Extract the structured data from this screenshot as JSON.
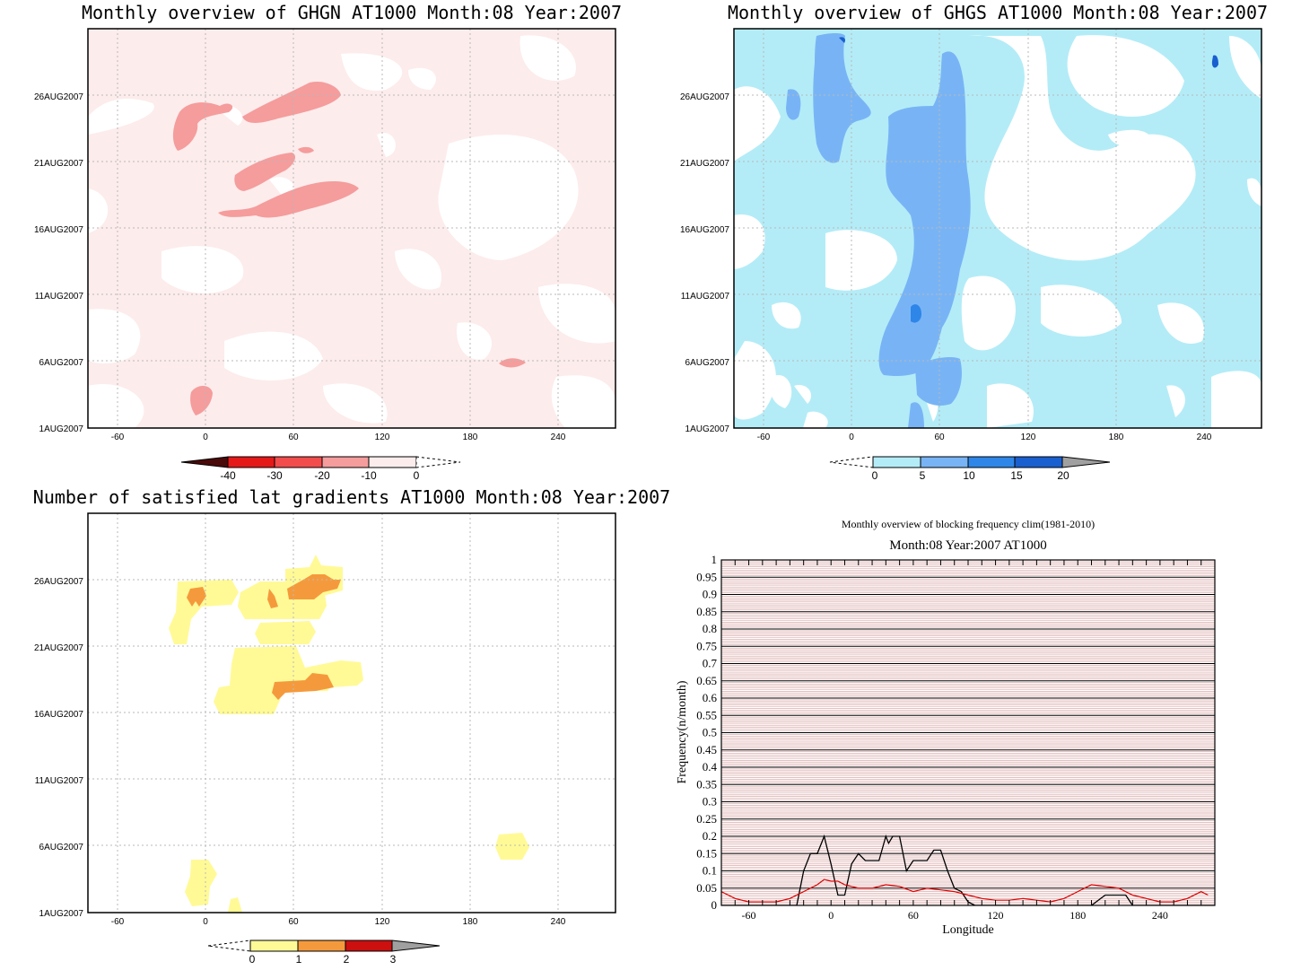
{
  "chart_data": [
    {
      "type": "heatmap",
      "title": "Monthly overview of GHGN AT1000 Month:08 Year:2007",
      "x_ticks": [
        "-60",
        "0",
        "60",
        "120",
        "180",
        "240"
      ],
      "y_ticks": [
        "1AUG2007",
        "6AUG2007",
        "11AUG2007",
        "16AUG2007",
        "21AUG2007",
        "26AUG2007"
      ],
      "xlim": [
        -80,
        280
      ],
      "colorbar": {
        "labels": [
          "-40",
          "-30",
          "-20",
          "-10",
          "0"
        ],
        "colors": [
          "#6b0d0d",
          "#e61919",
          "#f24c4c",
          "#f59c9c",
          "#fdecec"
        ]
      },
      "background_color": "#fdecec",
      "patch_colors": {
        "zero": "#ffffff",
        "level": "#f59c9c"
      }
    },
    {
      "type": "heatmap",
      "title": "Monthly overview of GHGS AT1000 Month:08 Year:2007",
      "x_ticks": [
        "-60",
        "0",
        "60",
        "120",
        "180",
        "240"
      ],
      "y_ticks": [
        "1AUG2007",
        "6AUG2007",
        "11AUG2007",
        "16AUG2007",
        "21AUG2007",
        "26AUG2007"
      ],
      "xlim": [
        -80,
        280
      ],
      "colorbar": {
        "labels": [
          "0",
          "5",
          "10",
          "15",
          "20"
        ],
        "colors": [
          "#b3ecf7",
          "#78b4f5",
          "#2e86e8",
          "#1a5fcf",
          "#a0a0a0"
        ]
      },
      "background_color": "#b3ecf7"
    },
    {
      "type": "heatmap",
      "title": "Number of satisfied lat gradients AT1000 Month:08 Year:2007",
      "x_ticks": [
        "-60",
        "0",
        "60",
        "120",
        "180",
        "240"
      ],
      "y_ticks": [
        "1AUG2007",
        "6AUG2007",
        "11AUG2007",
        "16AUG2007",
        "21AUG2007",
        "26AUG2007"
      ],
      "xlim": [
        -80,
        280
      ],
      "colorbar": {
        "labels": [
          "0",
          "1",
          "2",
          "3"
        ],
        "colors": [
          "#fffa96",
          "#f59a3c",
          "#cc1010",
          "#a0a0a0"
        ]
      }
    },
    {
      "type": "line",
      "title": "Monthly overview of blocking frequency clim(1981-2010)",
      "subtitle": "Month:08 Year:2007  AT1000",
      "xlabel": "Longitude",
      "ylabel": "Frequency(n/month)",
      "xlim": [
        -80,
        280
      ],
      "ylim": [
        0,
        1
      ],
      "x_ticks": [
        "-60",
        "0",
        "60",
        "120",
        "180",
        "240"
      ],
      "y_ticks": [
        "0",
        "0.05",
        "0.1",
        "0.15",
        "0.2",
        "0.25",
        "0.3",
        "0.35",
        "0.4",
        "0.45",
        "0.5",
        "0.55",
        "0.6",
        "0.65",
        "0.7",
        "0.75",
        "0.8",
        "0.85",
        "0.9",
        "0.95",
        "1"
      ],
      "grid": true,
      "series": [
        {
          "color": "#000000",
          "x": [
            -80,
            -30,
            -25,
            -20,
            -15,
            -10,
            -5,
            0,
            5,
            10,
            15,
            20,
            25,
            30,
            35,
            40,
            42,
            45,
            50,
            55,
            60,
            65,
            70,
            75,
            80,
            85,
            90,
            95,
            100,
            105,
            110,
            180,
            190,
            200,
            210,
            215,
            220,
            280
          ],
          "values": [
            0,
            0,
            0,
            0.1,
            0.15,
            0.15,
            0.2,
            0.12,
            0.03,
            0.03,
            0.12,
            0.15,
            0.13,
            0.13,
            0.13,
            0.2,
            0.18,
            0.2,
            0.2,
            0.1,
            0.13,
            0.13,
            0.13,
            0.16,
            0.16,
            0.1,
            0.05,
            0.04,
            0.01,
            0,
            0,
            0,
            0,
            0.03,
            0.03,
            0.03,
            0,
            0
          ]
        },
        {
          "color": "#dd0000",
          "x": [
            -80,
            -70,
            -60,
            -50,
            -40,
            -30,
            -20,
            -10,
            -5,
            0,
            5,
            10,
            20,
            30,
            40,
            50,
            60,
            70,
            80,
            90,
            100,
            110,
            120,
            130,
            140,
            150,
            160,
            170,
            180,
            190,
            200,
            210,
            220,
            230,
            240,
            250,
            260,
            270,
            275
          ],
          "values": [
            0.04,
            0.02,
            0.01,
            0.01,
            0.01,
            0.02,
            0.04,
            0.06,
            0.075,
            0.07,
            0.07,
            0.06,
            0.05,
            0.05,
            0.06,
            0.055,
            0.04,
            0.05,
            0.045,
            0.04,
            0.03,
            0.02,
            0.015,
            0.015,
            0.02,
            0.015,
            0.01,
            0.02,
            0.04,
            0.06,
            0.055,
            0.05,
            0.03,
            0.02,
            0.01,
            0.01,
            0.02,
            0.04,
            0.03
          ]
        }
      ]
    }
  ]
}
